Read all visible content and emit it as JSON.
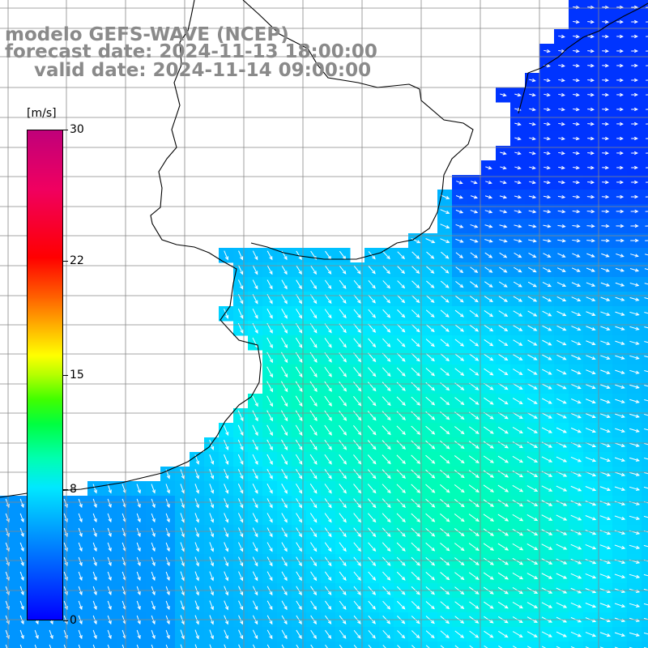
{
  "title": {
    "line1": "modelo GEFS-WAVE (NCEP)",
    "line2": "forecast date: 2024-11-13 18:00:00",
    "line3": "valid date: 2024-11-14 09:00:00"
  },
  "colorbar": {
    "unit": "[m/s]",
    "ticks": [
      {
        "label": "30",
        "value": 30
      },
      {
        "label": "22",
        "value": 22
      },
      {
        "label": "15",
        "value": 15
      },
      {
        "label": "8",
        "value": 8
      },
      {
        "label": "0",
        "value": 0
      }
    ],
    "min": 0,
    "max": 30
  },
  "colors": {
    "land": "#ffffff",
    "grid": "#888888",
    "coast": "#000000",
    "arrow": "#ffffff",
    "title": "#8a8a8a"
  }
}
